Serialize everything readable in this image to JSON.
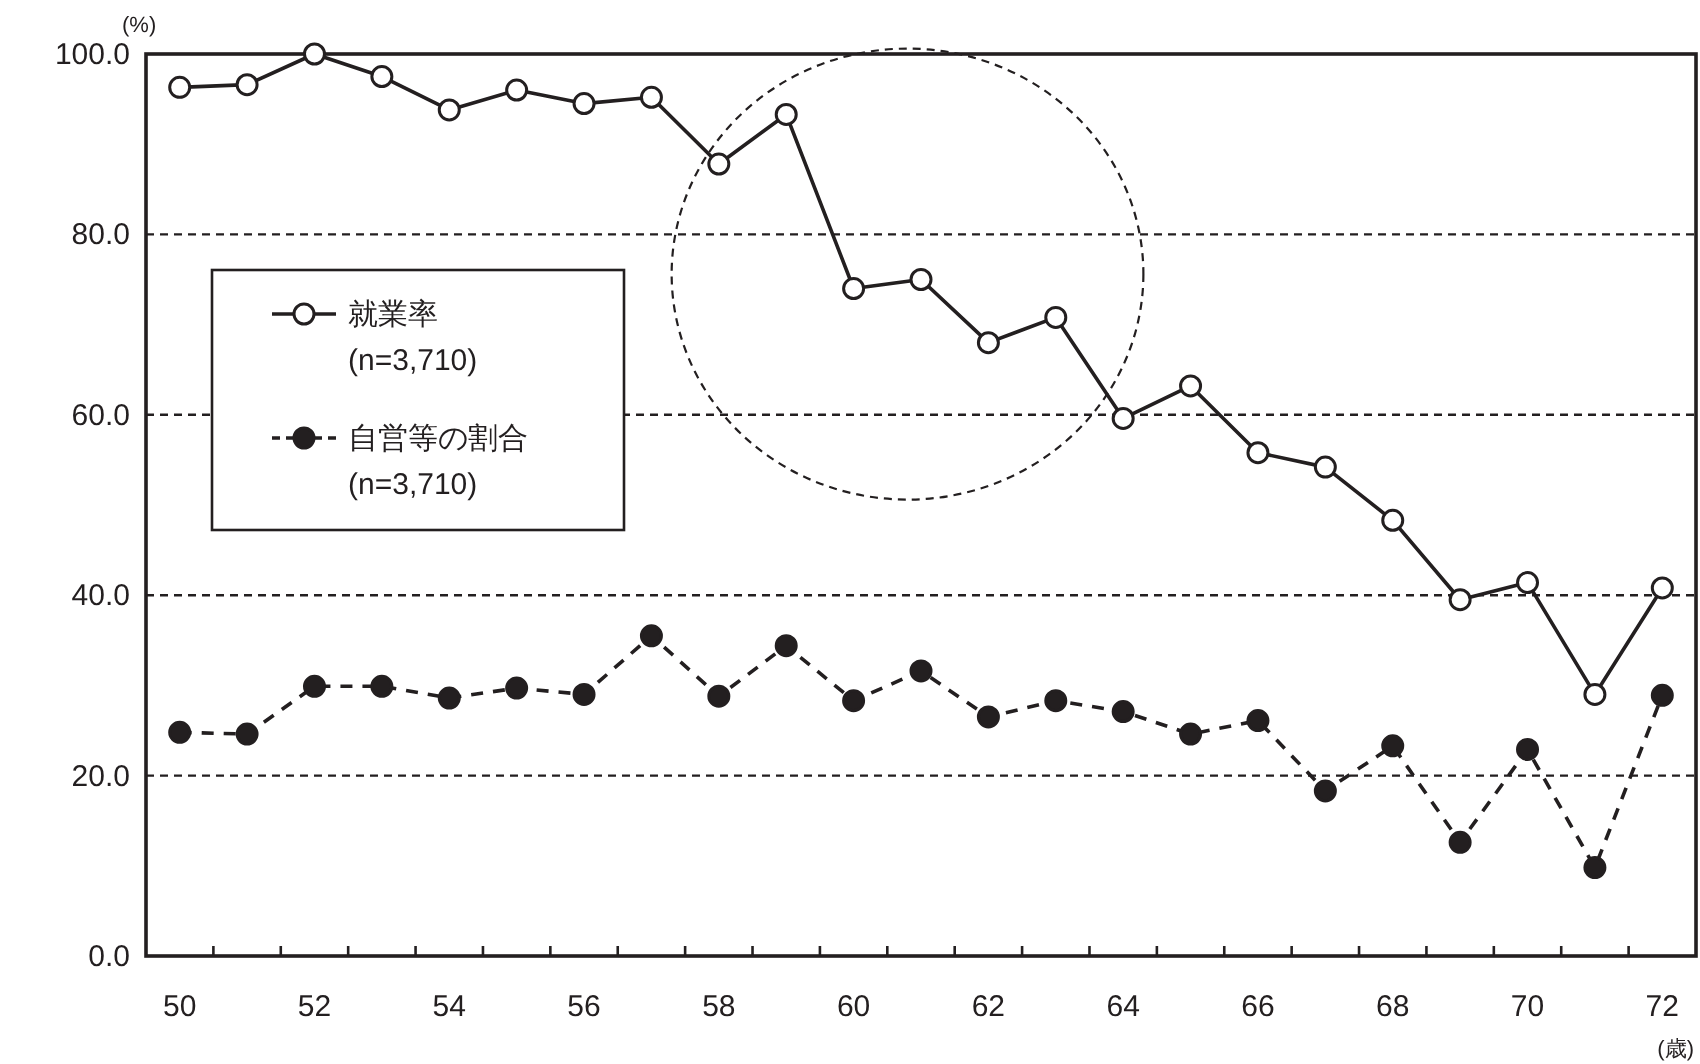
{
  "chart_data": {
    "type": "line",
    "ylabel": "(%)",
    "xlabel": "(歳)",
    "categories": [
      "50",
      null,
      "52",
      null,
      "54",
      null,
      "56",
      null,
      "58",
      null,
      "60",
      null,
      "62",
      null,
      "64",
      null,
      "66",
      null,
      "68",
      null,
      "70",
      null,
      "72"
    ],
    "series": [
      {
        "name": "就業率\n(n=3,710)",
        "color": "#231f20",
        "line_style": "solid",
        "marker": "circle",
        "values": [
          96.3,
          96.6,
          100.0,
          97.5,
          93.8,
          96.0,
          94.5,
          95.2,
          87.8,
          93.3,
          74.0,
          75.0,
          68.0,
          70.8,
          59.6,
          63.2,
          55.8,
          54.2,
          48.3,
          39.5,
          41.4,
          29.0,
          40.8
        ]
      },
      {
        "name": "自営等の割合\n(n=3,710)",
        "color": "#231f20",
        "line_style": "dashed",
        "marker": "circle",
        "values": [
          24.8,
          24.6,
          29.9,
          29.9,
          28.6,
          29.7,
          29.0,
          35.5,
          28.8,
          34.4,
          28.3,
          31.6,
          26.5,
          28.3,
          27.1,
          24.6,
          26.1,
          18.3,
          23.3,
          12.6,
          22.9,
          9.8,
          28.9
        ]
      }
    ],
    "ylim": [
      0,
      100
    ],
    "yticks": [
      {
        "value": 0,
        "label": "0.0"
      },
      {
        "value": 20,
        "label": "20.0"
      },
      {
        "value": 40,
        "label": "40.0"
      },
      {
        "value": 60,
        "label": "60.0"
      },
      {
        "value": 80,
        "label": "80.0"
      },
      {
        "value": 100,
        "label": "100.0"
      }
    ],
    "grid": "y",
    "legend": "left"
  }
}
